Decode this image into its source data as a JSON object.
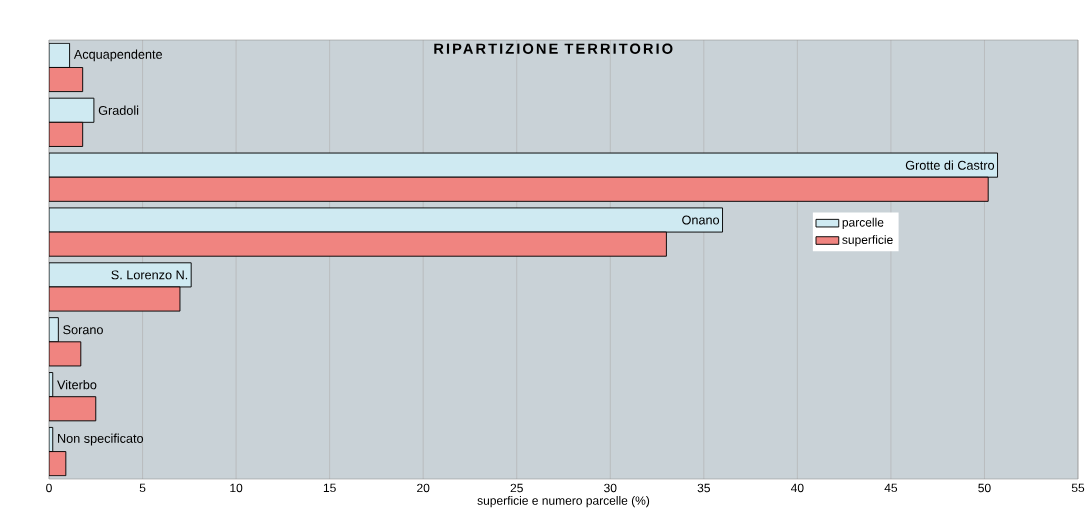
{
  "chart_data": {
    "type": "bar",
    "orientation": "horizontal",
    "title": "RIPARTIZIONE TERRITORIO",
    "xlabel": "superficie e numero parcelle (%)",
    "categories": [
      "Acquapendente",
      "Gradoli",
      "Grotte di Castro",
      "Onano",
      "S. Lorenzo N.",
      "Sorano",
      "Viterbo",
      "Non specificato"
    ],
    "series": [
      {
        "name": "parcelle",
        "color": "#cfeaf2",
        "values": [
          1.1,
          2.4,
          50.7,
          36.0,
          7.6,
          0.5,
          0.2,
          0.2
        ]
      },
      {
        "name": "superficie",
        "color": "#f08480",
        "values": [
          1.8,
          1.8,
          50.2,
          33.0,
          7.0,
          1.7,
          2.5,
          0.9
        ]
      }
    ],
    "xlim": [
      0,
      55
    ],
    "xticks": [
      0,
      5,
      10,
      15,
      20,
      25,
      30,
      35,
      40,
      45,
      50,
      55
    ],
    "grid": "x",
    "legend": "right"
  }
}
